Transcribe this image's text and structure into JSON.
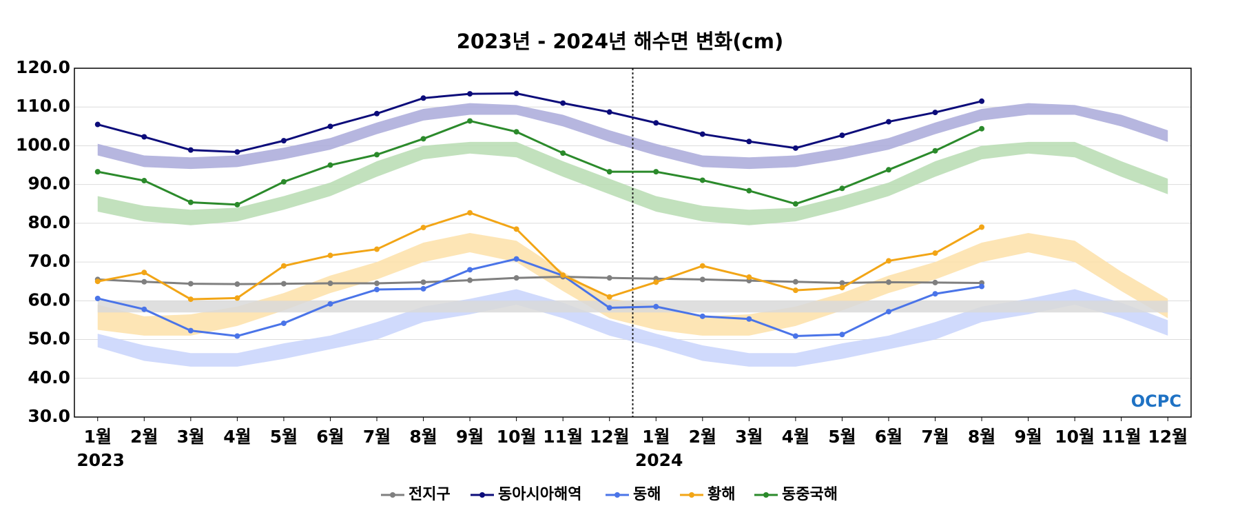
{
  "chart_data": {
    "type": "line",
    "title": "2023년 - 2024년 해수면 변화(cm)",
    "categories": [
      "1월",
      "2월",
      "3월",
      "4월",
      "5월",
      "6월",
      "7월",
      "8월",
      "9월",
      "10월",
      "11월",
      "12월",
      "1월",
      "2월",
      "3월",
      "4월",
      "5월",
      "6월",
      "7월",
      "8월",
      "9월",
      "10월",
      "11월",
      "12월"
    ],
    "x_groups": [
      {
        "label": "2023",
        "start": 0
      },
      {
        "label": "2024",
        "start": 12
      }
    ],
    "ylim": [
      30,
      120
    ],
    "yticks": [
      {
        "value": 30,
        "label": "30.0"
      },
      {
        "value": 40,
        "label": "40.0"
      },
      {
        "value": 50,
        "label": "50.0"
      },
      {
        "value": 60,
        "label": "60.0"
      },
      {
        "value": 70,
        "label": "70.0"
      },
      {
        "value": 80,
        "label": "80.0"
      },
      {
        "value": 90,
        "label": "90.0"
      },
      {
        "value": 100,
        "label": "100.0"
      },
      {
        "value": 110,
        "label": "110.0"
      },
      {
        "value": 120,
        "label": "120.0"
      }
    ],
    "grid": true,
    "legend": "bottom",
    "logo": "OCPC",
    "bands": [
      {
        "color": "#a9a9d9",
        "lower": [
          97.5,
          94.5,
          94,
          94.5,
          96.5,
          99,
          103,
          106.5,
          108,
          108,
          105,
          101,
          97.5,
          94.5,
          94,
          94.5,
          96.5,
          99,
          103,
          106.5,
          108,
          108,
          105,
          101
        ],
        "upper": [
          100.5,
          97.5,
          97,
          97.5,
          99.5,
          102,
          106,
          109.5,
          111,
          110.5,
          108,
          104,
          100.5,
          97.5,
          97,
          97.5,
          99.5,
          102,
          106,
          109.5,
          111,
          110.5,
          108,
          104
        ]
      },
      {
        "color": "#b7dcb2",
        "lower": [
          83,
          80.5,
          79.5,
          80.5,
          83.5,
          87,
          92,
          96.5,
          98,
          97,
          92,
          87.5,
          83,
          80.5,
          79.5,
          80.5,
          83.5,
          87,
          92,
          96.5,
          98,
          97,
          92,
          87.5
        ],
        "upper": [
          87,
          84.5,
          83.5,
          84,
          87,
          90.5,
          96,
          100,
          101,
          101,
          96,
          91.5,
          87,
          84.5,
          83.5,
          84,
          87,
          90.5,
          96,
          100,
          101,
          101,
          96,
          91.5
        ]
      },
      {
        "color": "#fde1a8",
        "lower": [
          52.5,
          51,
          51,
          53.5,
          57.5,
          62,
          65.5,
          70,
          72.5,
          70,
          62.5,
          55.5,
          52.5,
          51,
          51,
          53.5,
          57.5,
          62,
          65.5,
          70,
          72.5,
          70,
          62.5,
          55.5
        ],
        "upper": [
          59,
          56,
          56.5,
          58.5,
          62,
          66.5,
          70,
          75,
          77.5,
          75.5,
          67.5,
          60.5,
          59,
          56,
          56.5,
          58.5,
          62,
          66.5,
          70,
          75,
          77.5,
          75.5,
          67.5,
          60.5
        ]
      },
      {
        "color": "#c8d3fc",
        "lower": [
          48,
          44.5,
          43,
          43,
          45,
          47.5,
          50,
          54.5,
          56.5,
          59,
          55.5,
          51,
          48,
          44.5,
          43,
          43,
          45,
          47.5,
          50,
          54.5,
          56.5,
          59,
          55.5,
          51
        ],
        "upper": [
          51.5,
          48.5,
          46.5,
          46.5,
          49,
          51,
          54.5,
          58.5,
          60.5,
          63,
          59.5,
          55,
          51.5,
          48.5,
          46.5,
          46.5,
          49,
          51,
          54.5,
          58.5,
          60.5,
          63,
          59.5,
          55
        ]
      },
      {
        "color": "#d9d9d9",
        "lower": [
          57,
          57,
          57,
          57,
          57,
          57,
          57,
          57,
          57,
          57,
          57,
          57,
          57,
          57,
          57,
          57,
          57,
          57,
          57,
          57,
          57,
          57,
          57,
          57
        ],
        "upper": [
          60,
          60,
          60,
          60,
          60,
          60,
          60,
          60,
          60,
          60,
          60,
          60,
          60,
          60,
          60,
          60,
          60,
          60,
          60,
          60,
          60,
          60,
          60,
          60
        ]
      }
    ],
    "series": [
      {
        "name": "전지구",
        "color": "#7f7f7f",
        "values": [
          65.5,
          64.9,
          64.4,
          64.3,
          64.4,
          64.5,
          64.5,
          64.8,
          65.3,
          65.9,
          66.2,
          65.9,
          65.7,
          65.5,
          65.2,
          64.9,
          64.6,
          64.8,
          64.7,
          64.6,
          null,
          null,
          null,
          null
        ]
      },
      {
        "name": "동아시아해역",
        "color": "#0c0c7a",
        "values": [
          105.5,
          102.3,
          98.9,
          98.4,
          101.3,
          105,
          108.3,
          112.3,
          113.4,
          113.5,
          111,
          108.7,
          105.9,
          103,
          101.1,
          99.4,
          102.7,
          106.2,
          108.6,
          111.5,
          null,
          null,
          null,
          null
        ]
      },
      {
        "name": "동해",
        "color": "#4a74e8",
        "values": [
          60.6,
          57.8,
          52.3,
          50.9,
          54.2,
          59.2,
          62.9,
          63.1,
          68,
          70.8,
          66.5,
          58.2,
          58.5,
          56,
          55.3,
          50.9,
          51.3,
          57.2,
          61.8,
          63.7,
          null,
          null,
          null,
          null
        ]
      },
      {
        "name": "황해",
        "color": "#f2a516",
        "values": [
          65,
          67.3,
          60.4,
          60.7,
          69,
          71.7,
          73.3,
          78.9,
          82.7,
          78.5,
          66.6,
          61,
          64.8,
          69,
          66.1,
          62.7,
          63.4,
          70.3,
          72.3,
          79,
          null,
          null,
          null,
          null
        ]
      },
      {
        "name": "동중국해",
        "color": "#2b8a2b",
        "values": [
          93.3,
          91,
          85.4,
          84.8,
          90.7,
          95,
          97.7,
          101.8,
          106.4,
          103.6,
          98.1,
          93.3,
          93.3,
          91.1,
          88.4,
          85,
          89,
          93.8,
          98.7,
          104.4,
          null,
          null,
          null,
          null
        ]
      }
    ]
  }
}
